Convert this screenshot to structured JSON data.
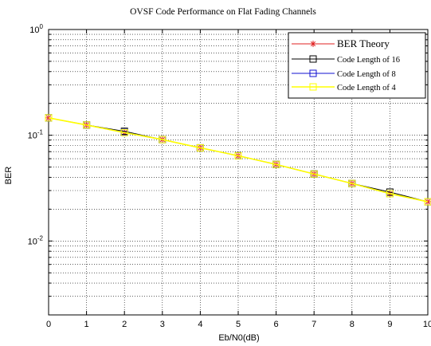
{
  "chart_data": {
    "type": "line",
    "title": "OVSF Code Performance on Flat Fading Channels",
    "xlabel": "Eb/N0(dB)",
    "ylabel": "BER",
    "xlim": [
      0,
      10
    ],
    "ylim": [
      0.002,
      1
    ],
    "yscale": "log",
    "grid": true,
    "legend_position": "top-right",
    "x": [
      0,
      1,
      2,
      3,
      4,
      5,
      6,
      7,
      8,
      9,
      10
    ],
    "x_ticks": [
      "0",
      "1",
      "2",
      "3",
      "4",
      "5",
      "6",
      "7",
      "8",
      "9",
      "10"
    ],
    "y_ticks": [
      {
        "value": 1,
        "label": "10^0"
      },
      {
        "value": 0.1,
        "label": "10^-1"
      },
      {
        "value": 0.01,
        "label": "10^-2"
      }
    ],
    "series": [
      {
        "name": "BER Theory",
        "color": "#e02020",
        "marker": "asterisk",
        "values": [
          0.146,
          0.125,
          0.106,
          0.091,
          0.076,
          0.064,
          0.053,
          0.043,
          0.035,
          0.028,
          0.0235
        ]
      },
      {
        "name": "Code Length of 16",
        "color": "#000000",
        "marker": "square",
        "values": [
          0.146,
          0.125,
          0.109,
          0.091,
          0.076,
          0.064,
          0.053,
          0.043,
          0.035,
          0.029,
          0.0235
        ]
      },
      {
        "name": "Code Length of 8",
        "color": "#1010d0",
        "marker": "square",
        "values": [
          0.146,
          0.125,
          0.107,
          0.091,
          0.076,
          0.064,
          0.053,
          0.043,
          0.035,
          0.028,
          0.0235
        ]
      },
      {
        "name": "Code Length of 4",
        "color": "#ffff00",
        "marker": "square",
        "values": [
          0.146,
          0.125,
          0.106,
          0.091,
          0.076,
          0.064,
          0.053,
          0.043,
          0.035,
          0.028,
          0.0235
        ]
      }
    ]
  }
}
